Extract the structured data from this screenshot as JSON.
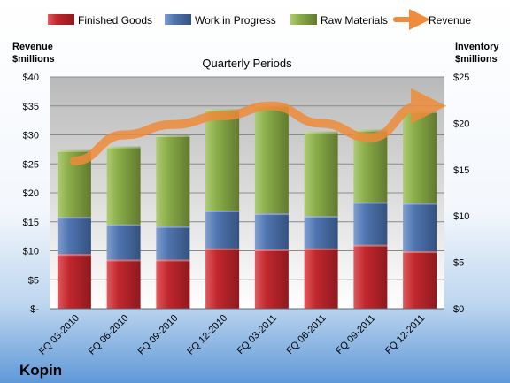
{
  "company": "Kopin",
  "chart_data": {
    "type": "bar",
    "subtype": "stacked-bar-with-line",
    "title": "Quarterly Periods",
    "categories": [
      "FQ 03-2010",
      "FQ 06-2010",
      "FQ 09-2010",
      "FQ 12-2010",
      "FQ 03-2011",
      "FQ 06-2011",
      "FQ 09-2011",
      "FQ 12-2011"
    ],
    "left_axis": {
      "label_line1": "Revenue",
      "label_line2": "$millions",
      "ylim": [
        0,
        40
      ],
      "ticks": [
        "$-",
        "$5",
        "$10",
        "$15",
        "$20",
        "$25",
        "$30",
        "$35",
        "$40"
      ]
    },
    "right_axis": {
      "label_line1": "Inventory",
      "label_line2": "$millions",
      "ylim": [
        0,
        25
      ],
      "ticks": [
        "$0",
        "$5",
        "$10",
        "$15",
        "$20",
        "$25"
      ]
    },
    "series": [
      {
        "name": "Finished Goods",
        "axis": "right",
        "kind": "bar",
        "color": "#c0272d",
        "values": [
          5.9,
          5.3,
          5.3,
          6.5,
          6.4,
          6.5,
          6.9,
          6.2
        ]
      },
      {
        "name": "Work in Progress",
        "axis": "right",
        "kind": "bar",
        "color": "#4f74b0",
        "values": [
          4.0,
          3.8,
          3.6,
          4.1,
          3.9,
          3.5,
          4.6,
          5.2
        ]
      },
      {
        "name": "Raw Materials",
        "axis": "right",
        "kind": "bar",
        "color": "#8aac48",
        "values": [
          7.2,
          8.4,
          9.8,
          10.9,
          11.7,
          9.1,
          7.8,
          9.9
        ]
      },
      {
        "name": "Revenue",
        "axis": "left",
        "kind": "line",
        "color": "#ef8b3a",
        "values": [
          25.5,
          30.0,
          31.8,
          33.3,
          35.0,
          32.0,
          29.5,
          35.0
        ]
      }
    ],
    "grid": true,
    "legend": "top"
  }
}
